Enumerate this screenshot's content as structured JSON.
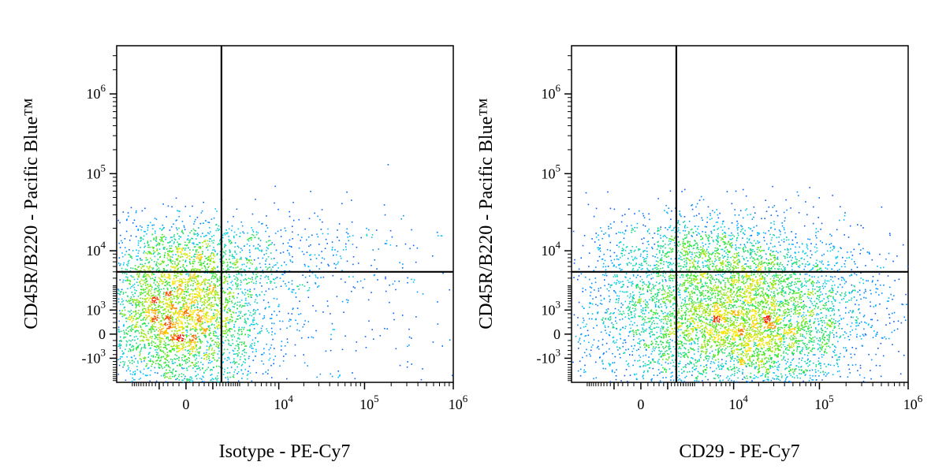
{
  "chart_data": [
    {
      "type": "scatter",
      "style": "pseudocolor density dot plot (biexponential axes)",
      "xlabel": "Isotype - PE-Cy7",
      "ylabel": "CD45R/B220 - Pacific Blue™",
      "x_tick_labels": [
        "0",
        "10^4",
        "10^5",
        "10^6"
      ],
      "y_tick_labels": [
        "10^6",
        "10^5",
        "10^4",
        "10^3",
        "0",
        "-10^3"
      ],
      "xlim": [
        -5000,
        1000000
      ],
      "ylim": [
        -3000,
        4000000
      ],
      "gates": {
        "x": 1500,
        "y": 5000
      },
      "populations": [
        {
          "x_center": -200,
          "y_center": 300,
          "x_spread": 0.5,
          "y_spread": 0.45,
          "count": 2600
        },
        {
          "x_center": -200,
          "y_center": 2500,
          "x_spread": 0.5,
          "y_spread": 0.35,
          "count": 700
        },
        {
          "x_center": -200,
          "y_center": 9000,
          "x_spread": 0.55,
          "y_spread": 0.25,
          "count": 600
        },
        {
          "x_center": 8000,
          "y_center": 9000,
          "x_spread": 1.1,
          "y_spread": 0.3,
          "count": 450
        },
        {
          "x_center": 5000,
          "y_center": 300,
          "x_spread": 1.3,
          "y_spread": 0.6,
          "count": 320
        }
      ],
      "grid": false
    },
    {
      "type": "scatter",
      "style": "pseudocolor density dot plot (biexponential axes)",
      "xlabel": "CD29 - PE-Cy7",
      "ylabel": "CD45R/B220 - Pacific Blue™",
      "x_tick_labels": [
        "0",
        "10^4",
        "10^5",
        "10^6"
      ],
      "y_tick_labels": [
        "10^6",
        "10^5",
        "10^4",
        "10^3",
        "0",
        "-10^3"
      ],
      "xlim": [
        -5000,
        1000000
      ],
      "ylim": [
        -3000,
        4000000
      ],
      "gates": {
        "x": 1500,
        "y": 5000
      },
      "populations": [
        {
          "x_center": 6000,
          "y_center": 300,
          "x_spread": 0.8,
          "y_spread": 0.45,
          "count": 3200
        },
        {
          "x_center": 30000,
          "y_center": 300,
          "x_spread": 0.5,
          "y_spread": 0.45,
          "count": 1400
        },
        {
          "x_center": 2500,
          "y_center": 9000,
          "x_spread": 0.6,
          "y_spread": 0.25,
          "count": 550
        },
        {
          "x_center": 9000,
          "y_center": 9000,
          "x_spread": 0.8,
          "y_spread": 0.35,
          "count": 700
        },
        {
          "x_center": 8000,
          "y_center": 2500,
          "x_spread": 0.8,
          "y_spread": 0.35,
          "count": 600
        }
      ],
      "grid": false
    }
  ]
}
